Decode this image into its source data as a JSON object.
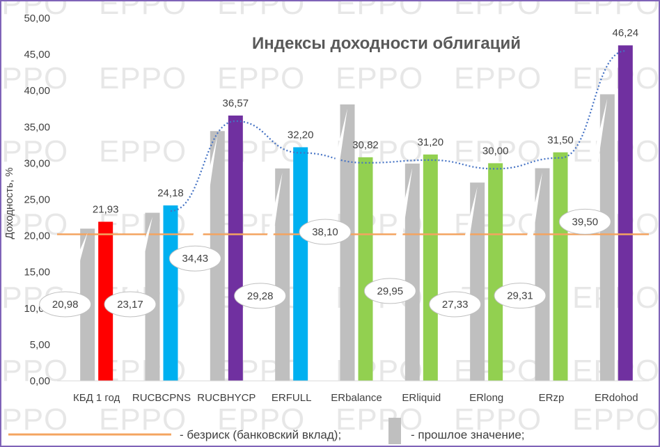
{
  "chart_data": {
    "type": "bar",
    "title": "Индексы доходности облигаций",
    "ylabel": "Доходность, %",
    "ylim": [
      0,
      50
    ],
    "ytick_step": 5,
    "ytick_labels": [
      "0,00",
      "5,00",
      "10,00",
      "15,00",
      "20,00",
      "25,00",
      "30,00",
      "35,00",
      "40,00",
      "45,00",
      "50,00"
    ],
    "categories": [
      "КБД 1 год",
      "RUCBCPNS",
      "RUCBHYCP",
      "ERFULL",
      "ERbalance",
      "ERliquid",
      "ERlong",
      "ERzp",
      "ERdohod"
    ],
    "series": [
      {
        "name": "прошлое значение",
        "values": [
          20.98,
          23.17,
          34.43,
          29.28,
          38.1,
          29.95,
          27.33,
          29.31,
          39.5
        ],
        "labels": [
          "20,98",
          "23,17",
          "34,43",
          "29,28",
          "38,10",
          "29,95",
          "27,33",
          "29,31",
          "39,50"
        ],
        "color": "#bfbfbf"
      },
      {
        "values": [
          21.93,
          24.18,
          36.57,
          32.2,
          30.82,
          31.2,
          30.0,
          31.5,
          46.24
        ],
        "labels": [
          "21,93",
          "24,18",
          "36,57",
          "32,20",
          "30,82",
          "31,20",
          "30,00",
          "31,50",
          "46,24"
        ],
        "colors": [
          "#ff0000",
          "#00b0f0",
          "#7030a0",
          "#00b0f0",
          "#92d050",
          "#92d050",
          "#92d050",
          "#92d050",
          "#7030a0"
        ]
      }
    ],
    "trendline": {
      "style": "dotted",
      "color": "#4472c4"
    },
    "reference_line": {
      "name": "безриск (банковский вклад)",
      "value": 20.2,
      "color": "#f4a460"
    },
    "watermark": "EPPO",
    "legend": {
      "position": "bottom",
      "items": [
        "- безриск (банковский вклад);",
        "- прошлое значение;"
      ]
    },
    "grid": false
  }
}
